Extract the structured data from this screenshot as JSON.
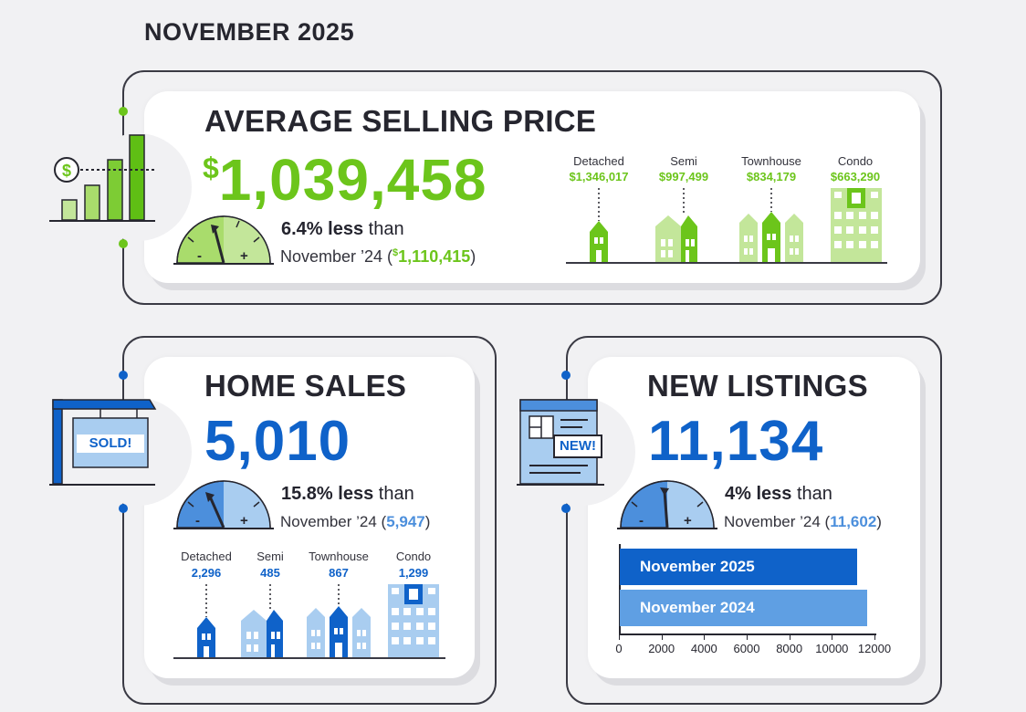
{
  "header": {
    "title": "NOVEMBER 2025"
  },
  "colors": {
    "green": "#6cc51b",
    "light_green": "#c3e69a",
    "blue": "#0f62c9",
    "light_blue": "#a9cdf0",
    "dark": "#26262f"
  },
  "avg_price": {
    "title": "AVERAGE SELLING PRICE",
    "currency": "$",
    "value": "1,039,458",
    "delta_bold": "6.4% less",
    "delta_rest": " than",
    "compare_label": "November ’24 (",
    "compare_currency": "$",
    "compare_value": "1,110,415",
    "compare_close": ")",
    "icon": "price-chart-icon",
    "types": [
      {
        "label": "Detached",
        "value": "$1,346,017"
      },
      {
        "label": "Semi",
        "value": "$997,499"
      },
      {
        "label": "Townhouse",
        "value": "$834,179"
      },
      {
        "label": "Condo",
        "value": "$663,290"
      }
    ]
  },
  "home_sales": {
    "title": "HOME SALES",
    "value": "5,010",
    "delta_bold": "15.8% less",
    "delta_rest": " than",
    "compare_label": "November ’24 (",
    "compare_value": "5,947",
    "compare_close": ")",
    "sign_text": "SOLD!",
    "icon": "sold-sign-icon",
    "types": [
      {
        "label": "Detached",
        "value": "2,296"
      },
      {
        "label": "Semi",
        "value": "485"
      },
      {
        "label": "Townhouse",
        "value": "867"
      },
      {
        "label": "Condo",
        "value": "1,299"
      }
    ]
  },
  "new_listings": {
    "title": "NEW LISTINGS",
    "value": "11,134",
    "delta_bold": "4% less",
    "delta_rest": " than",
    "compare_label": "November ’24 (",
    "compare_value": "11,602",
    "compare_close": ")",
    "badge_text": "NEW!",
    "icon": "new-listing-icon",
    "gauge": {
      "minus": "-",
      "plus": "+"
    },
    "chart_data": {
      "type": "bar",
      "orientation": "horizontal",
      "categories": [
        "November 2025",
        "November 2024"
      ],
      "values": [
        11134,
        11602
      ],
      "colors": [
        "#0f62c9",
        "#5f9fe3"
      ],
      "xlim": [
        0,
        12000
      ],
      "ticks": [
        "0",
        "2000",
        "4000",
        "6000",
        "8000",
        "10000",
        "12000"
      ]
    }
  }
}
